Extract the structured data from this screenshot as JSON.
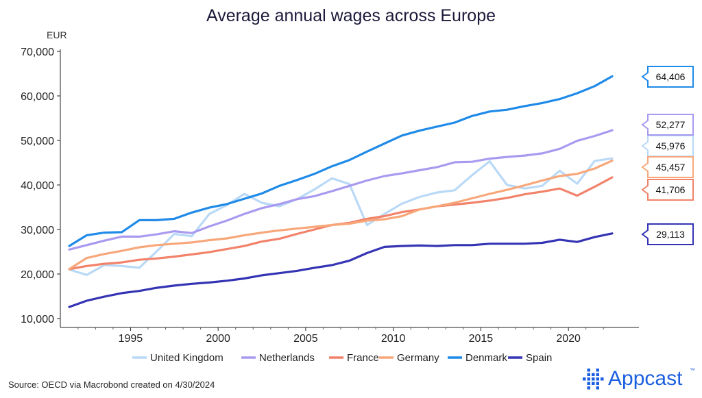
{
  "chart_data": {
    "type": "line",
    "title": "Average annual wages across Europe",
    "ylabel": "EUR",
    "xlabel": "",
    "ylim": [
      10000,
      70000
    ],
    "xlim": [
      1991.5,
      2022.5
    ],
    "yticks": [
      10000,
      20000,
      30000,
      40000,
      50000,
      60000,
      70000
    ],
    "ytick_labels": [
      "10,000",
      "20,000",
      "30,000",
      "40,000",
      "50,000",
      "60,000",
      "70,000"
    ],
    "xticks": [
      1995,
      2000,
      2005,
      2010,
      2015,
      2020
    ],
    "xtick_labels": [
      "1995",
      "2000",
      "2005",
      "2010",
      "2015",
      "2020"
    ],
    "x": [
      1991.5,
      1992.5,
      1993.5,
      1994.5,
      1995.5,
      1996.5,
      1997.5,
      1998.5,
      1999.5,
      2000.5,
      2001.5,
      2002.5,
      2003.5,
      2004.5,
      2005.5,
      2006.5,
      2007.5,
      2008.5,
      2009.5,
      2010.5,
      2011.5,
      2012.5,
      2013.5,
      2014.5,
      2015.5,
      2016.5,
      2017.5,
      2018.5,
      2019.5,
      2020.5,
      2021.5,
      2022.5
    ],
    "series": [
      {
        "name": "United Kingdom",
        "color": "#b9d9f7",
        "end_label": "45,976",
        "values": [
          21000,
          19800,
          22000,
          21800,
          21400,
          25100,
          29000,
          28500,
          33500,
          35500,
          38000,
          36000,
          35200,
          36800,
          39000,
          41500,
          40200,
          31000,
          33500,
          35800,
          37300,
          38300,
          38800,
          42200,
          45300,
          40000,
          39200,
          39800,
          43200,
          40300,
          45400,
          45976
        ]
      },
      {
        "name": "Netherlands",
        "color": "#a99af0",
        "end_label": "52,277",
        "values": [
          25500,
          26500,
          27500,
          28400,
          28400,
          28900,
          29600,
          29200,
          30700,
          32000,
          33500,
          34800,
          35700,
          36800,
          37500,
          38600,
          39800,
          41000,
          42000,
          42600,
          43300,
          44000,
          45100,
          45200,
          45900,
          46300,
          46600,
          47100,
          48100,
          49900,
          51000,
          52277
        ]
      },
      {
        "name": "France",
        "color": "#f2826a",
        "end_label": "41,706",
        "values": [
          21100,
          21800,
          22300,
          22600,
          23200,
          23500,
          23900,
          24400,
          24900,
          25600,
          26300,
          27300,
          27900,
          29000,
          30000,
          31000,
          31500,
          32400,
          33000,
          33900,
          34500,
          35200,
          35600,
          36000,
          36500,
          37100,
          37900,
          38500,
          39200,
          37600,
          39600,
          41706
        ]
      },
      {
        "name": "Germany",
        "color": "#f7a77a",
        "end_label": "45,457",
        "values": [
          21100,
          23600,
          24500,
          25200,
          26000,
          26500,
          26800,
          27100,
          27600,
          28000,
          28700,
          29300,
          29800,
          30200,
          30600,
          31000,
          31300,
          32000,
          32300,
          33000,
          34500,
          35200,
          36000,
          37000,
          38000,
          38900,
          39900,
          41000,
          42000,
          42500,
          43700,
          45457
        ]
      },
      {
        "name": "Denmark",
        "color": "#1f8ae8",
        "end_label": "64,406",
        "values": [
          26300,
          28700,
          29300,
          29400,
          32100,
          32100,
          32400,
          33800,
          34900,
          35700,
          36900,
          38100,
          39800,
          41100,
          42500,
          44200,
          45600,
          47500,
          49300,
          51100,
          52200,
          53100,
          54000,
          55500,
          56500,
          56900,
          57700,
          58400,
          59300,
          60600,
          62200,
          64406
        ]
      },
      {
        "name": "Spain",
        "color": "#3434b4",
        "end_label": "29,113",
        "values": [
          12600,
          14000,
          14900,
          15700,
          16200,
          16900,
          17400,
          17800,
          18100,
          18500,
          19000,
          19700,
          20200,
          20700,
          21400,
          22000,
          23000,
          24700,
          26100,
          26300,
          26400,
          26300,
          26500,
          26500,
          26800,
          26800,
          26800,
          27000,
          27700,
          27200,
          28300,
          29113
        ]
      }
    ],
    "legend_position": "bottom"
  },
  "source_text": "Source: OECD via Macrobond created on 4/30/2024",
  "brand": {
    "name": "Appcast",
    "trademark": "™",
    "color": "#1b5fe0"
  }
}
